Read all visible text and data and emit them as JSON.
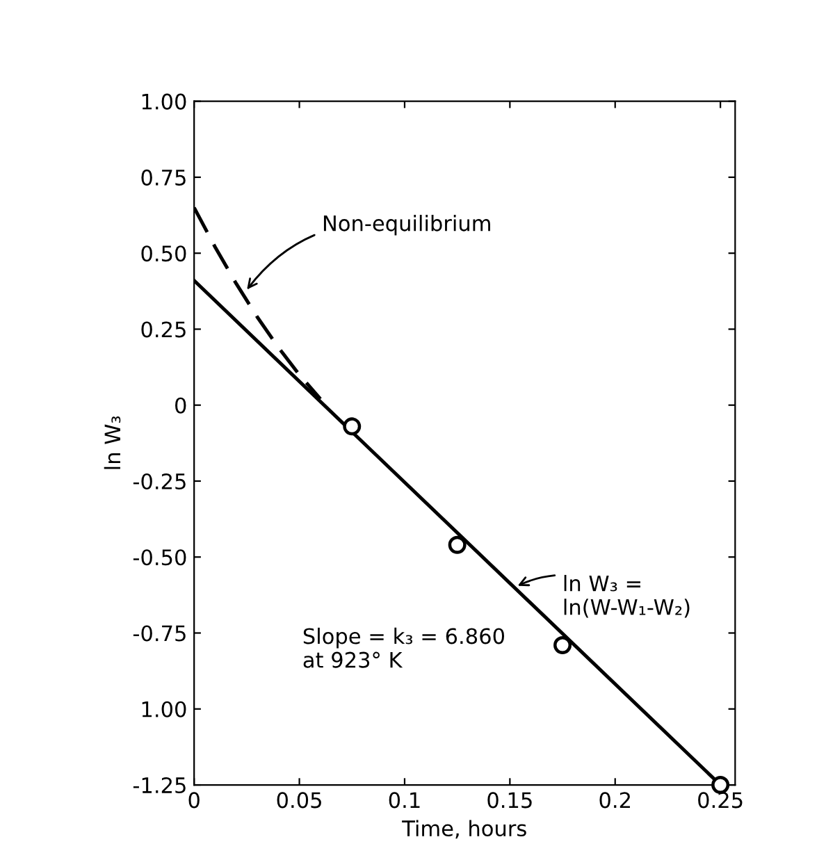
{
  "chart_data": {
    "type": "scatter",
    "xlabel": "Time, hours",
    "ylabel": "ln W₃",
    "series": [
      {
        "x": [
          0.075,
          0.125,
          0.175,
          0.25
        ],
        "values": [
          -0.07,
          -0.46,
          -0.79,
          -1.25
        ],
        "color": "#000000",
        "marker": "circle"
      },
      {
        "type": "line",
        "x": [
          0,
          0.25
        ],
        "values": [
          0.41,
          -1.25
        ],
        "color": "#000000",
        "line_style": "solid"
      },
      {
        "type": "line",
        "x": [
          0,
          0.01,
          0.02,
          0.03,
          0.04,
          0.05,
          0.06
        ],
        "values": [
          0.65,
          0.52,
          0.4,
          0.29,
          0.19,
          0.1,
          0.02
        ],
        "color": "#000000",
        "line_style": "dashed"
      }
    ],
    "xlim": [
      0,
      0.257
    ],
    "ylim": [
      -1.25,
      1.0
    ],
    "xticks": [
      0,
      0.05,
      0.1,
      0.15,
      0.2,
      0.25
    ],
    "yticks": [
      {
        "value": 1.0,
        "label": "1.00"
      },
      {
        "value": 0.75,
        "label": "0.75"
      },
      {
        "value": 0.5,
        "label": "0.50"
      },
      {
        "value": 0.25,
        "label": "0.25"
      },
      {
        "value": 0,
        "label": "0"
      },
      {
        "value": -0.25,
        "label": "-0.25"
      },
      {
        "value": -0.5,
        "label": "-0.50"
      },
      {
        "value": -0.75,
        "label": "-0.75"
      },
      {
        "value": -1.0,
        "label": "1.00"
      },
      {
        "value": -1.25,
        "label": "-1.25"
      }
    ],
    "annotations": [
      {
        "text": "Non-equilibrium",
        "x": 0.024,
        "y": 0.37
      },
      {
        "text": "ln W₃ =\nln(W-W₁-W₂)",
        "x": 0.152,
        "y": -0.6
      },
      "Slope = k₃ = 6.860\nat 923° K"
    ],
    "grid": false,
    "legend": false
  }
}
